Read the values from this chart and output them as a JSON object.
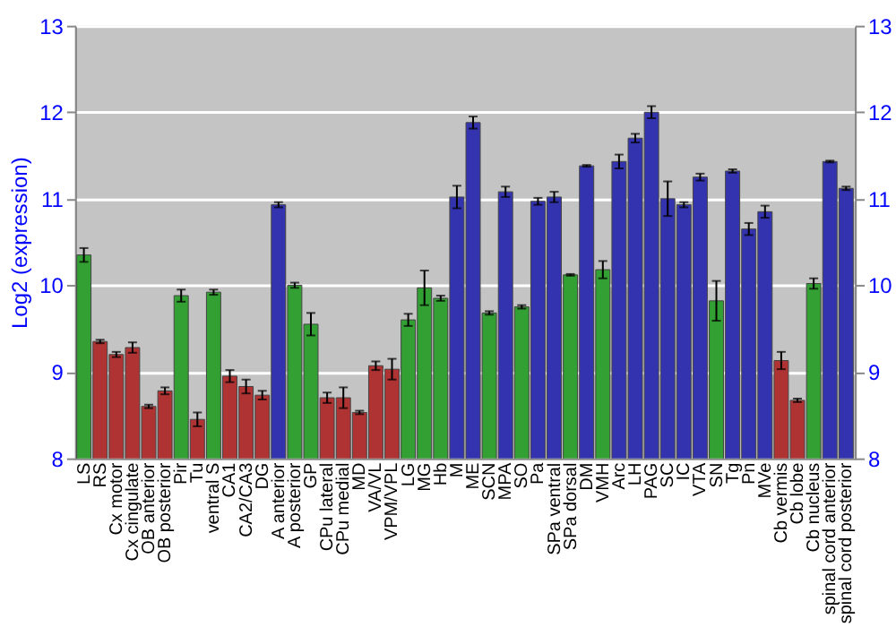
{
  "chart_data": {
    "type": "bar",
    "ylabel": "Log2 (expression)",
    "categories": [
      "LS",
      "RS",
      "Cx motor",
      "Cx cingulate",
      "OB anterior",
      "OB posterior",
      "Pir",
      "Tu",
      "ventral S",
      "CA1",
      "CA2/CA3",
      "DG",
      "A anterior",
      "A posterior",
      "GP",
      "CPu lateral",
      "CPu medial",
      "MD",
      "VA/VL",
      "VPM/VPL",
      "LG",
      "MG",
      "Hb",
      "M",
      "ME",
      "SCN",
      "MPA",
      "SO",
      "Pa",
      "SPa ventral",
      "SPa dorsal",
      "DM",
      "VMH",
      "Arc",
      "LH",
      "PAG",
      "SC",
      "IC",
      "VTA",
      "SN",
      "Tg",
      "Pn",
      "MVe",
      "Cb vermis",
      "Cb lobe",
      "Cb nucleus",
      "spinal cord anterior",
      "spinal cord posterior"
    ],
    "values": [
      10.35,
      9.35,
      9.2,
      9.28,
      8.6,
      8.78,
      9.88,
      8.45,
      9.92,
      8.95,
      8.83,
      8.73,
      10.93,
      10.0,
      9.55,
      8.7,
      8.7,
      8.53,
      9.07,
      9.03,
      9.6,
      9.97,
      9.85,
      11.02,
      11.88,
      9.68,
      11.08,
      9.75,
      10.97,
      11.02,
      10.12,
      11.38,
      10.18,
      11.43,
      11.7,
      12.0,
      11.0,
      10.93,
      11.25,
      9.82,
      11.32,
      10.65,
      10.85,
      9.13,
      8.67,
      10.02,
      11.43,
      11.12
    ],
    "errors": [
      0.08,
      0.02,
      0.03,
      0.06,
      0.02,
      0.04,
      0.07,
      0.08,
      0.03,
      0.07,
      0.08,
      0.05,
      0.03,
      0.03,
      0.13,
      0.06,
      0.12,
      0.02,
      0.05,
      0.12,
      0.07,
      0.2,
      0.03,
      0.13,
      0.07,
      0.02,
      0.06,
      0.02,
      0.04,
      0.06,
      0.01,
      0.01,
      0.1,
      0.08,
      0.05,
      0.07,
      0.2,
      0.03,
      0.04,
      0.23,
      0.02,
      0.07,
      0.07,
      0.1,
      0.02,
      0.06,
      0.01,
      0.02
    ],
    "colors": [
      "#33a033",
      "#b03333",
      "#b03333",
      "#b03333",
      "#b03333",
      "#b03333",
      "#33a033",
      "#b03333",
      "#33a033",
      "#b03333",
      "#b03333",
      "#b03333",
      "#3333b0",
      "#33a033",
      "#33a033",
      "#b03333",
      "#b03333",
      "#b03333",
      "#b03333",
      "#b03333",
      "#33a033",
      "#33a033",
      "#33a033",
      "#3333b0",
      "#3333b0",
      "#33a033",
      "#3333b0",
      "#33a033",
      "#3333b0",
      "#3333b0",
      "#33a033",
      "#3333b0",
      "#33a033",
      "#3333b0",
      "#3333b0",
      "#3333b0",
      "#3333b0",
      "#3333b0",
      "#3333b0",
      "#33a033",
      "#3333b0",
      "#3333b0",
      "#3333b0",
      "#b03333",
      "#b03333",
      "#33a033",
      "#3333b0",
      "#3333b0"
    ],
    "ylim": [
      8,
      13
    ],
    "yticks": [
      8,
      9,
      10,
      11,
      12,
      13
    ],
    "y2lim": [
      8,
      13
    ],
    "y2ticks": [
      8,
      9,
      10,
      11,
      12,
      13
    ],
    "grid": "y"
  }
}
